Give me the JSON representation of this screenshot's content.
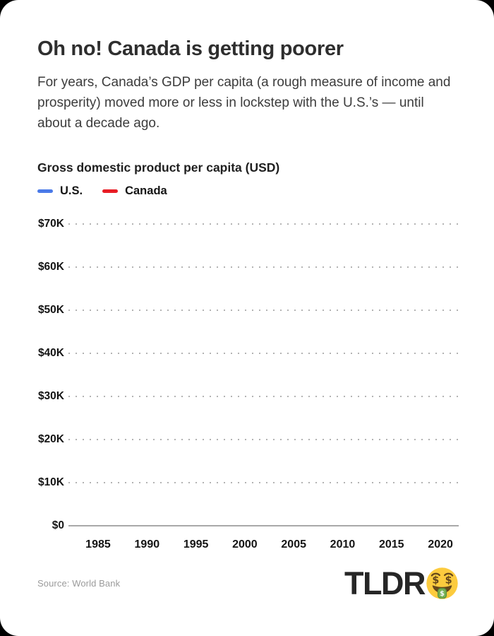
{
  "header": {
    "title": "Oh no! Canada is getting poorer",
    "subtitle": "For years, Canada’s GDP per capita (a rough measure of income and prosperity) moved more or less in lockstep with the U.S.’s — until about a decade ago."
  },
  "chart": {
    "title": "Gross domestic product per capita (USD)"
  },
  "chart_data": {
    "type": "line",
    "title": "Gross domestic product per capita (USD)",
    "x_tick_labels": [
      "1985",
      "1990",
      "1995",
      "2000",
      "2005",
      "2010",
      "2015",
      "2020"
    ],
    "y_tick_labels": [
      "$70K",
      "$60K",
      "$50K",
      "$40K",
      "$30K",
      "$20K",
      "$10K",
      "$0"
    ],
    "ylim": [
      0,
      70000
    ],
    "grid": "horizontal dotted gridlines, solid baseline at $0",
    "legend_position": "top-left",
    "series": [
      {
        "name": "U.S.",
        "color": "#4a7ae8",
        "values": []
      },
      {
        "name": "Canada",
        "color": "#e81c25",
        "values": []
      }
    ],
    "note": "Plot area is rendered empty — axes, gridlines and legend only; no series lines are drawn in this frame"
  },
  "footer": {
    "source": "Source: World Bank",
    "logo_text": "TLDR",
    "logo_emoji": "money-mouth-face-icon"
  },
  "colors": {
    "accent_us": "#4a7ae8",
    "accent_canada": "#e81c25",
    "grid_dots": "#b3b3b3",
    "axis_line": "#a9a9a9",
    "title_text": "#2e2e2e",
    "body_text": "#3c3c3c",
    "muted_text": "#9b9b9b",
    "card_background": "#ffffff",
    "page_background": "#000000"
  }
}
